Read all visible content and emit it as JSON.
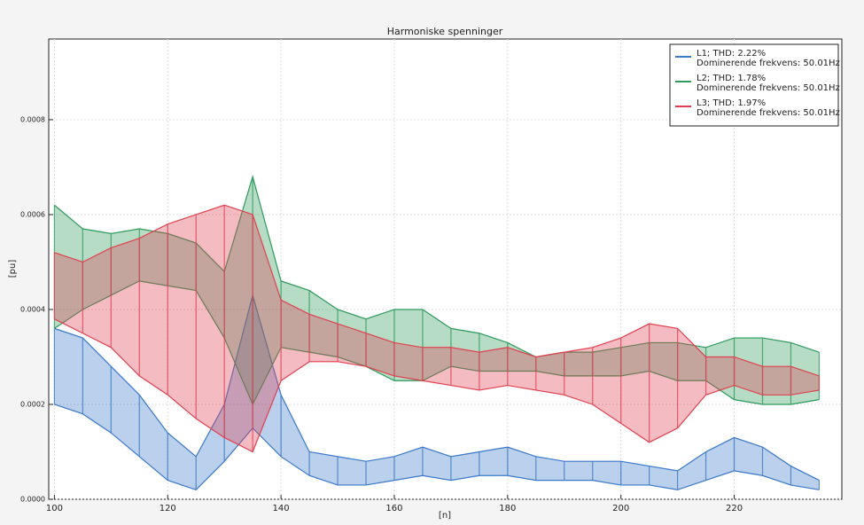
{
  "chart_data": {
    "type": "band",
    "title": "Harmoniske spenninger",
    "x_label": "[n]",
    "y_label": "[pu]",
    "xlim": [
      99,
      239
    ],
    "ylim": [
      0,
      0.00097
    ],
    "xticks": [
      100,
      120,
      140,
      160,
      180,
      200,
      220
    ],
    "yticks": [
      {
        "value": 0,
        "label": "0.0000"
      },
      {
        "value": 0.0002,
        "label": "0.0002"
      },
      {
        "value": 0.0004,
        "label": "0.0004"
      },
      {
        "value": 0.0006,
        "label": "0.0006"
      },
      {
        "value": 0.0008,
        "label": "0.0008"
      }
    ],
    "grid": true,
    "legend": "upper right",
    "x": [
      100,
      105,
      110,
      115,
      120,
      125,
      130,
      135,
      140,
      145,
      150,
      155,
      160,
      165,
      170,
      175,
      180,
      185,
      190,
      195,
      200,
      205,
      210,
      215,
      220,
      225,
      230,
      235
    ],
    "series": [
      {
        "name": "L1; THD: 2.22%",
        "note": "Dominerende frekvens: 50.01Hz",
        "color": "#3a78c8",
        "low": [
          0.0002,
          0.00018,
          0.00014,
          9e-05,
          4e-05,
          2e-05,
          8e-05,
          0.00015,
          9e-05,
          5e-05,
          3e-05,
          3e-05,
          4e-05,
          5e-05,
          4e-05,
          5e-05,
          5e-05,
          4e-05,
          4e-05,
          4e-05,
          3e-05,
          3e-05,
          2e-05,
          4e-05,
          6e-05,
          5e-05,
          3e-05,
          2e-05
        ],
        "high": [
          0.00036,
          0.00034,
          0.00028,
          0.00022,
          0.00014,
          9e-05,
          0.0002,
          0.00043,
          0.00022,
          0.0001,
          9e-05,
          8e-05,
          9e-05,
          0.00011,
          9e-05,
          0.0001,
          0.00011,
          9e-05,
          8e-05,
          8e-05,
          8e-05,
          7e-05,
          6e-05,
          0.0001,
          0.00013,
          0.00011,
          7e-05,
          4e-05
        ]
      },
      {
        "name": "L2; THD: 1.78%",
        "note": "Dominerende frekvens: 50.01Hz",
        "color": "#2e9a5c",
        "low": [
          0.00036,
          0.0004,
          0.00043,
          0.00046,
          0.00045,
          0.00044,
          0.00034,
          0.0002,
          0.00032,
          0.00031,
          0.0003,
          0.00028,
          0.00025,
          0.00025,
          0.00028,
          0.00027,
          0.00027,
          0.00027,
          0.00026,
          0.00026,
          0.00026,
          0.00027,
          0.00025,
          0.00025,
          0.00021,
          0.0002,
          0.0002,
          0.00021
        ],
        "high": [
          0.00062,
          0.00057,
          0.00056,
          0.00057,
          0.00056,
          0.00054,
          0.00048,
          0.00068,
          0.00046,
          0.00044,
          0.0004,
          0.00038,
          0.0004,
          0.0004,
          0.00036,
          0.00035,
          0.00033,
          0.0003,
          0.00031,
          0.00031,
          0.00032,
          0.00033,
          0.00033,
          0.00032,
          0.00034,
          0.00034,
          0.00033,
          0.00031
        ]
      },
      {
        "name": "L3; THD: 1.97%",
        "note": "Dominerende frekvens: 50.01Hz",
        "color": "#e0404f",
        "low": [
          0.00038,
          0.00035,
          0.00032,
          0.00026,
          0.00022,
          0.00017,
          0.00013,
          0.0001,
          0.00025,
          0.00029,
          0.00029,
          0.00028,
          0.00026,
          0.00025,
          0.00024,
          0.00023,
          0.00024,
          0.00023,
          0.00022,
          0.0002,
          0.00016,
          0.00012,
          0.00015,
          0.00022,
          0.00024,
          0.00022,
          0.00022,
          0.00023
        ],
        "high": [
          0.00052,
          0.0005,
          0.00053,
          0.00055,
          0.00058,
          0.0006,
          0.00062,
          0.0006,
          0.00042,
          0.00039,
          0.00037,
          0.00035,
          0.00033,
          0.00032,
          0.00032,
          0.00031,
          0.00032,
          0.0003,
          0.00031,
          0.00032,
          0.00034,
          0.00037,
          0.00036,
          0.0003,
          0.0003,
          0.00028,
          0.00028,
          0.00026
        ]
      }
    ]
  }
}
